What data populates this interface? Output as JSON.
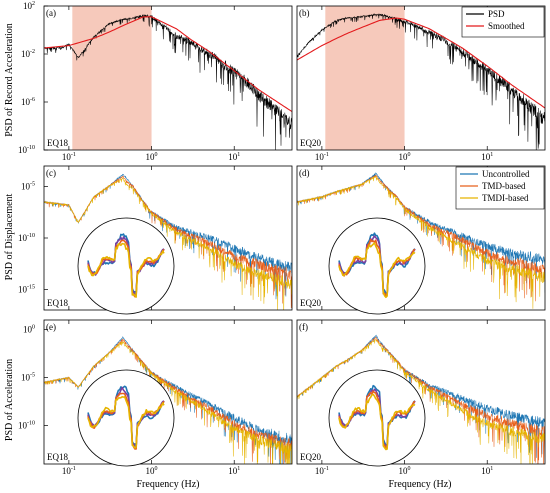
{
  "colors": {
    "psd": "#000000",
    "smoothed": "#e31a1c",
    "uncontrolled": "#1f77b4",
    "tmd": "#e8601c",
    "tmdi": "#e6b400",
    "band": "#f6c9bb",
    "zoom_extra": "#7a3fa0"
  },
  "labels": {
    "ylabel_rows": [
      "PSD of Record Acceleration",
      "PSD of Displacement",
      "PSD of Acceleration"
    ],
    "xlabel": "Frequency (Hz)"
  },
  "chart_data": [
    {
      "panel": "(a)",
      "earthquake": "EQ18",
      "type": "line",
      "xscale": "log",
      "xlim": [
        0.05,
        50
      ],
      "xticks": [
        {
          "m": "10",
          "e": "-1"
        },
        {
          "m": "10",
          "e": "0"
        },
        {
          "m": "10",
          "e": "1"
        }
      ],
      "ylim_exp": [
        -10,
        2
      ],
      "yticks": [
        {
          "m": "10",
          "e": "2"
        },
        {
          "m": "10",
          "e": "-2"
        },
        {
          "m": "10",
          "e": "-6"
        },
        {
          "m": "10",
          "e": "-10"
        }
      ],
      "shaded_band_hz": [
        0.11,
        1.0
      ],
      "series": [
        {
          "name": "PSD",
          "x": [
            0.05,
            0.08,
            0.1,
            0.13,
            0.2,
            0.3,
            0.45,
            0.6,
            0.8,
            1.0,
            1.5,
            2,
            3,
            5,
            8,
            10,
            15,
            20,
            30,
            50
          ],
          "log10_y": [
            -1.5,
            -1.5,
            -1.2,
            -2.3,
            -0.6,
            0.5,
            0.9,
            1.0,
            1.2,
            1.1,
            0.2,
            -0.5,
            -1,
            -2,
            -3,
            -3.5,
            -4.5,
            -5.5,
            -6.5,
            -8
          ]
        },
        {
          "name": "Smoothed",
          "x": [
            0.05,
            0.1,
            0.2,
            0.3,
            0.5,
            0.8,
            1,
            2,
            3,
            5,
            10,
            20,
            50
          ],
          "log10_y": [
            -1.5,
            -1.3,
            -0.7,
            -0.2,
            0.5,
            1.1,
            1.1,
            0.1,
            -0.8,
            -1.8,
            -3.4,
            -5.0,
            -6.8
          ]
        }
      ]
    },
    {
      "panel": "(b)",
      "earthquake": "EQ20",
      "type": "line",
      "xscale": "log",
      "xlim": [
        0.05,
        50
      ],
      "xticks": [
        {
          "m": "10",
          "e": "-1"
        },
        {
          "m": "10",
          "e": "0"
        },
        {
          "m": "10",
          "e": "1"
        }
      ],
      "ylim_exp": [
        -10,
        2
      ],
      "yticks": [],
      "shaded_band_hz": [
        0.11,
        1.0
      ],
      "series": [
        {
          "name": "PSD",
          "x": [
            0.05,
            0.07,
            0.1,
            0.15,
            0.2,
            0.3,
            0.45,
            0.6,
            0.8,
            1,
            1.5,
            2,
            3,
            5,
            10,
            20,
            50
          ],
          "log10_y": [
            -2.2,
            -1.0,
            0.0,
            0.8,
            1.0,
            1.1,
            1.3,
            1.2,
            0.9,
            0.7,
            0.2,
            -0.2,
            -0.8,
            -1.8,
            -3.3,
            -5.0,
            -7.5
          ]
        },
        {
          "name": "Smoothed",
          "x": [
            0.05,
            0.1,
            0.15,
            0.2,
            0.3,
            0.5,
            0.8,
            1,
            2,
            3,
            5,
            10,
            20,
            50
          ],
          "log10_y": [
            -2.5,
            -1.3,
            -0.7,
            -0.3,
            0.2,
            0.8,
            1.0,
            0.9,
            0.1,
            -0.6,
            -1.5,
            -3.0,
            -4.6,
            -6.5
          ]
        }
      ]
    },
    {
      "panel": "(c)",
      "earthquake": "EQ18",
      "type": "line",
      "xscale": "log",
      "xlim": [
        0.05,
        50
      ],
      "xticks": [],
      "ylim_exp": [
        -17,
        -3
      ],
      "yticks": [
        {
          "m": "10",
          "e": "-5"
        },
        {
          "m": "10",
          "e": "-10"
        },
        {
          "m": "10",
          "e": "-15"
        }
      ],
      "series": [
        {
          "name": "Uncontrolled",
          "x": [
            0.05,
            0.1,
            0.13,
            0.2,
            0.3,
            0.45,
            0.5,
            0.6,
            0.8,
            1,
            2,
            5,
            10,
            20,
            50
          ],
          "log10_y": [
            -6.5,
            -6.8,
            -8.5,
            -6.0,
            -5.0,
            -3.8,
            -4.2,
            -5.0,
            -6.5,
            -7.5,
            -9.0,
            -10.0,
            -11.0,
            -12.0,
            -13.0
          ]
        },
        {
          "name": "TMD-based",
          "x": [
            0.05,
            0.1,
            0.13,
            0.2,
            0.3,
            0.45,
            0.5,
            0.6,
            0.8,
            1,
            2,
            5,
            10,
            20,
            50
          ],
          "log10_y": [
            -6.5,
            -6.8,
            -8.5,
            -6.0,
            -5.0,
            -4.0,
            -4.5,
            -5.0,
            -6.5,
            -7.5,
            -9.2,
            -10.5,
            -11.8,
            -12.6,
            -13.6
          ]
        },
        {
          "name": "TMDI-based",
          "x": [
            0.05,
            0.1,
            0.13,
            0.2,
            0.3,
            0.45,
            0.5,
            0.6,
            0.8,
            1,
            2,
            5,
            10,
            20,
            50
          ],
          "log10_y": [
            -6.5,
            -6.8,
            -8.5,
            -6.0,
            -5.0,
            -4.2,
            -4.8,
            -5.2,
            -6.6,
            -7.6,
            -9.5,
            -11.0,
            -12.5,
            -13.5,
            -14.5
          ]
        }
      ]
    },
    {
      "panel": "(d)",
      "earthquake": "EQ20",
      "type": "line",
      "xscale": "log",
      "xlim": [
        0.05,
        50
      ],
      "xticks": [],
      "ylim_exp": [
        -17,
        -3
      ],
      "yticks": [],
      "series": [
        {
          "name": "Uncontrolled",
          "x": [
            0.05,
            0.1,
            0.15,
            0.2,
            0.3,
            0.45,
            0.5,
            0.6,
            0.8,
            1,
            2,
            5,
            10,
            20,
            50
          ],
          "log10_y": [
            -6.5,
            -6.0,
            -5.5,
            -5.2,
            -4.8,
            -3.7,
            -4.2,
            -5.0,
            -6.0,
            -7.0,
            -8.5,
            -9.8,
            -10.8,
            -11.5,
            -12.2
          ]
        },
        {
          "name": "TMD-based",
          "x": [
            0.05,
            0.1,
            0.15,
            0.2,
            0.3,
            0.45,
            0.5,
            0.6,
            0.8,
            1,
            2,
            5,
            10,
            20,
            50
          ],
          "log10_y": [
            -6.5,
            -6.0,
            -5.5,
            -5.2,
            -4.8,
            -3.9,
            -4.4,
            -5.0,
            -6.0,
            -7.0,
            -8.7,
            -10.2,
            -11.5,
            -12.3,
            -13.1
          ]
        },
        {
          "name": "TMDI-based",
          "x": [
            0.05,
            0.1,
            0.15,
            0.2,
            0.3,
            0.45,
            0.5,
            0.6,
            0.8,
            1,
            2,
            5,
            10,
            20,
            50
          ],
          "log10_y": [
            -6.5,
            -6.0,
            -5.5,
            -5.2,
            -4.8,
            -4.0,
            -4.6,
            -5.2,
            -6.1,
            -7.2,
            -9.0,
            -10.8,
            -12.2,
            -13.0,
            -13.8
          ]
        }
      ]
    },
    {
      "panel": "(e)",
      "earthquake": "EQ18",
      "type": "line",
      "xscale": "log",
      "xlim": [
        0.05,
        50
      ],
      "xticks": [
        {
          "m": "10",
          "e": "-1"
        },
        {
          "m": "10",
          "e": "0"
        },
        {
          "m": "10",
          "e": "1"
        }
      ],
      "ylim_exp": [
        -14,
        1
      ],
      "yticks": [
        {
          "m": "10",
          "e": "0"
        },
        {
          "m": "10",
          "e": "-5"
        },
        {
          "m": "10",
          "e": "-10"
        }
      ],
      "series": [
        {
          "name": "Uncontrolled",
          "x": [
            0.05,
            0.1,
            0.13,
            0.2,
            0.3,
            0.45,
            0.5,
            0.6,
            0.8,
            1,
            2,
            5,
            10,
            20,
            50
          ],
          "log10_y": [
            -5.5,
            -5.0,
            -6.0,
            -3.8,
            -2.5,
            -0.8,
            -1.3,
            -2.2,
            -3.5,
            -4.5,
            -6.0,
            -7.8,
            -9.2,
            -10.5,
            -11.5
          ]
        },
        {
          "name": "TMD-based",
          "x": [
            0.05,
            0.1,
            0.13,
            0.2,
            0.3,
            0.45,
            0.5,
            0.6,
            0.8,
            1,
            2,
            5,
            10,
            20,
            50
          ],
          "log10_y": [
            -5.5,
            -5.0,
            -6.0,
            -3.8,
            -2.5,
            -1.0,
            -1.5,
            -2.2,
            -3.5,
            -4.5,
            -6.2,
            -8.2,
            -9.8,
            -11.0,
            -12.0
          ]
        },
        {
          "name": "TMDI-based",
          "x": [
            0.05,
            0.1,
            0.13,
            0.2,
            0.3,
            0.45,
            0.5,
            0.6,
            0.8,
            1,
            2,
            5,
            10,
            20,
            50
          ],
          "log10_y": [
            -5.5,
            -5.0,
            -6.0,
            -3.8,
            -2.5,
            -1.2,
            -1.8,
            -2.4,
            -3.6,
            -4.6,
            -6.5,
            -8.6,
            -10.3,
            -11.5,
            -12.5
          ]
        }
      ]
    },
    {
      "panel": "(f)",
      "earthquake": "EQ20",
      "type": "line",
      "xscale": "log",
      "xlim": [
        0.05,
        50
      ],
      "xticks": [
        {
          "m": "10",
          "e": "-1"
        },
        {
          "m": "10",
          "e": "0"
        },
        {
          "m": "10",
          "e": "1"
        }
      ],
      "ylim_exp": [
        -14,
        1
      ],
      "yticks": [],
      "series": [
        {
          "name": "Uncontrolled",
          "x": [
            0.05,
            0.1,
            0.15,
            0.2,
            0.3,
            0.45,
            0.5,
            0.6,
            0.8,
            1,
            2,
            5,
            10,
            20,
            50
          ],
          "log10_y": [
            -7.0,
            -5.0,
            -3.8,
            -3.2,
            -2.2,
            -0.6,
            -1.2,
            -2.0,
            -3.2,
            -4.2,
            -5.8,
            -7.2,
            -8.2,
            -9.0,
            -9.7
          ]
        },
        {
          "name": "TMD-based",
          "x": [
            0.05,
            0.1,
            0.15,
            0.2,
            0.3,
            0.45,
            0.5,
            0.6,
            0.8,
            1,
            2,
            5,
            10,
            20,
            50
          ],
          "log10_y": [
            -7.0,
            -5.0,
            -3.8,
            -3.2,
            -2.2,
            -0.8,
            -1.4,
            -2.0,
            -3.2,
            -4.2,
            -6.0,
            -7.8,
            -9.0,
            -9.8,
            -10.6
          ]
        },
        {
          "name": "TMDI-based",
          "x": [
            0.05,
            0.1,
            0.15,
            0.2,
            0.3,
            0.45,
            0.5,
            0.6,
            0.8,
            1,
            2,
            5,
            10,
            20,
            50
          ],
          "log10_y": [
            -7.0,
            -5.0,
            -3.8,
            -3.2,
            -2.2,
            -1.0,
            -1.6,
            -2.2,
            -3.3,
            -4.4,
            -6.3,
            -8.4,
            -9.8,
            -10.6,
            -11.4
          ]
        }
      ]
    }
  ]
}
